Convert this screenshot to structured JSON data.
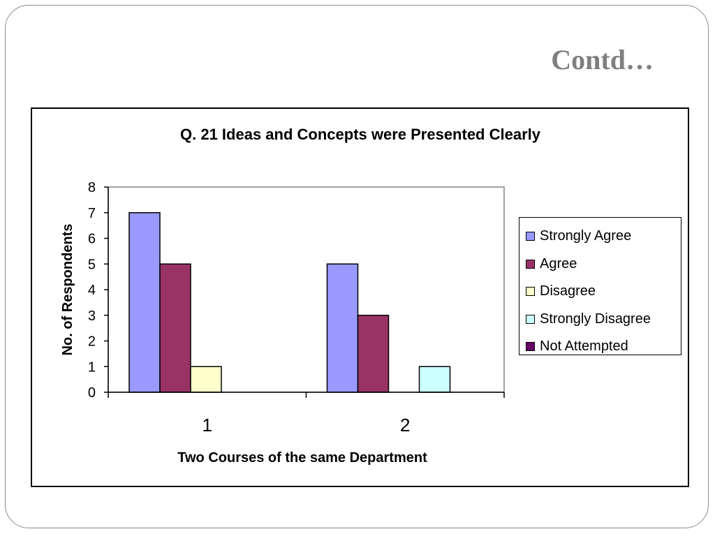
{
  "slide": {
    "title": "Contd…"
  },
  "chart_data": {
    "type": "bar",
    "title": "Q. 21 Ideas and Concepts were Presented Clearly",
    "xlabel": "Two Courses of the same Department",
    "ylabel": "No. of Respondents",
    "categories": [
      "1",
      "2"
    ],
    "ylim": [
      0,
      8
    ],
    "yticks": [
      0,
      1,
      2,
      3,
      4,
      5,
      6,
      7,
      8
    ],
    "grid": false,
    "legend_position": "right",
    "series": [
      {
        "name": "Strongly Agree",
        "values": [
          7,
          5
        ],
        "color": "#9999ff"
      },
      {
        "name": "Agree",
        "values": [
          5,
          3
        ],
        "color": "#993366"
      },
      {
        "name": "Disagree",
        "values": [
          1,
          0
        ],
        "color": "#ffffcc"
      },
      {
        "name": "Strongly Disagree",
        "values": [
          0,
          1
        ],
        "color": "#ccffff"
      },
      {
        "name": "Not Attempted",
        "values": [
          0,
          0
        ],
        "color": "#660066"
      }
    ]
  }
}
